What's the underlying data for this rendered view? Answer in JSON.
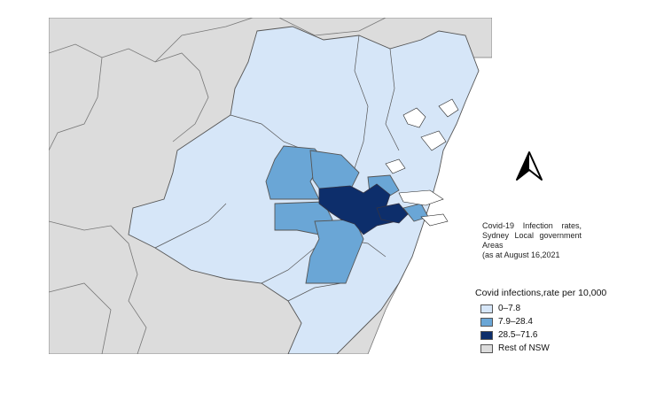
{
  "caption": {
    "line1_words": [
      "Covid-19",
      "Infection",
      "rates,"
    ],
    "line2_words": [
      "Sydney",
      "Local",
      "government"
    ],
    "line3": "Areas",
    "line4": "(as at August 16,2021"
  },
  "legend": {
    "title": "Covid infections,rate per 10,000",
    "items": [
      {
        "label": "0–7.8",
        "color": "#d6e6f8"
      },
      {
        "label": "7.9–28.4",
        "color": "#6aa6d6"
      },
      {
        "label": "28.5–71.6",
        "color": "#0d2e6b"
      },
      {
        "label": "Rest of NSW",
        "color": "#dcdcdc"
      }
    ]
  },
  "colors": {
    "land_outside": "#dcdcdc",
    "sea": "#ffffff",
    "border": "#555555"
  },
  "icons": {
    "north_arrow": "north-arrow-icon"
  }
}
